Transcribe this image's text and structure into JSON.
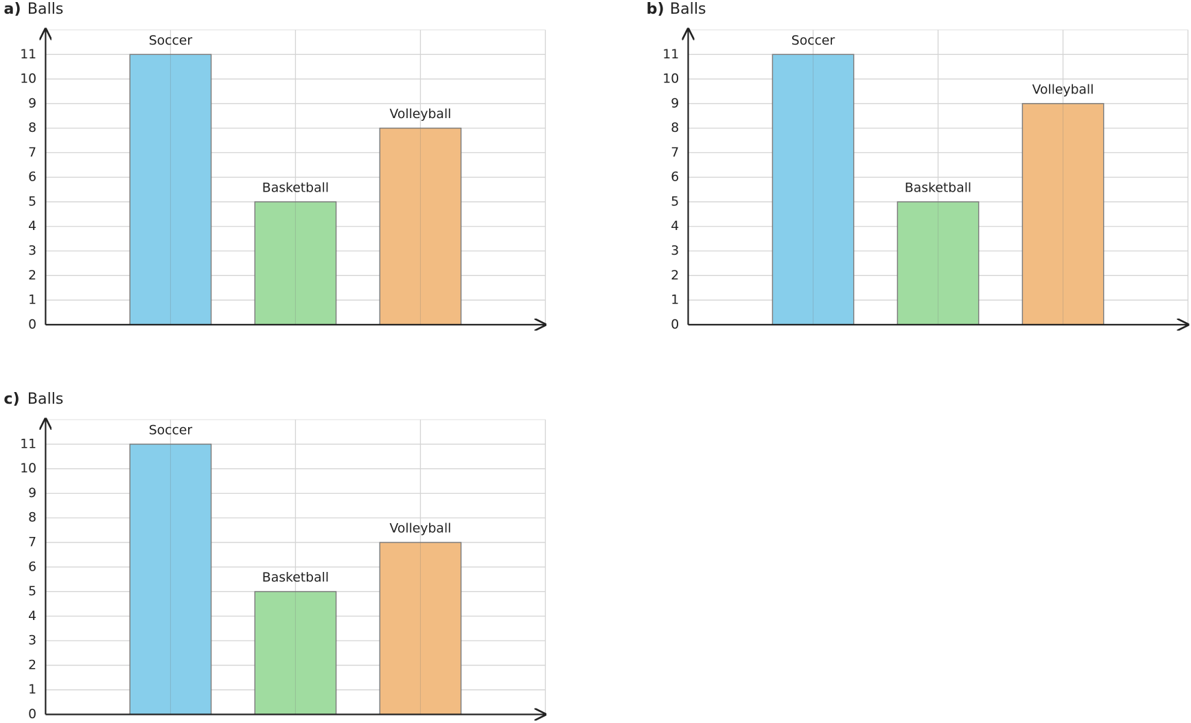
{
  "chart_data": [
    {
      "type": "bar",
      "label": "a)",
      "title": "Balls",
      "categories": [
        "Soccer",
        "Basketball",
        "Volleyball"
      ],
      "values": [
        11,
        5,
        8
      ],
      "colors": [
        "#87ceeb",
        "#a0dca0",
        "#f2bc82"
      ],
      "ylim": [
        0,
        12
      ],
      "yticks": [
        0,
        1,
        2,
        3,
        4,
        5,
        6,
        7,
        8,
        9,
        10,
        11
      ],
      "grid": true
    },
    {
      "type": "bar",
      "label": "b)",
      "title": "Balls",
      "categories": [
        "Soccer",
        "Basketball",
        "Volleyball"
      ],
      "values": [
        11,
        5,
        9
      ],
      "colors": [
        "#87ceeb",
        "#a0dca0",
        "#f2bc82"
      ],
      "ylim": [
        0,
        12
      ],
      "yticks": [
        0,
        1,
        2,
        3,
        4,
        5,
        6,
        7,
        8,
        9,
        10,
        11
      ],
      "grid": true
    },
    {
      "type": "bar",
      "label": "c)",
      "title": "Balls",
      "categories": [
        "Soccer",
        "Basketball",
        "Volleyball"
      ],
      "values": [
        11,
        5,
        7
      ],
      "colors": [
        "#87ceeb",
        "#a0dca0",
        "#f2bc82"
      ],
      "ylim": [
        0,
        12
      ],
      "yticks": [
        0,
        1,
        2,
        3,
        4,
        5,
        6,
        7,
        8,
        9,
        10,
        11
      ],
      "grid": true
    }
  ]
}
